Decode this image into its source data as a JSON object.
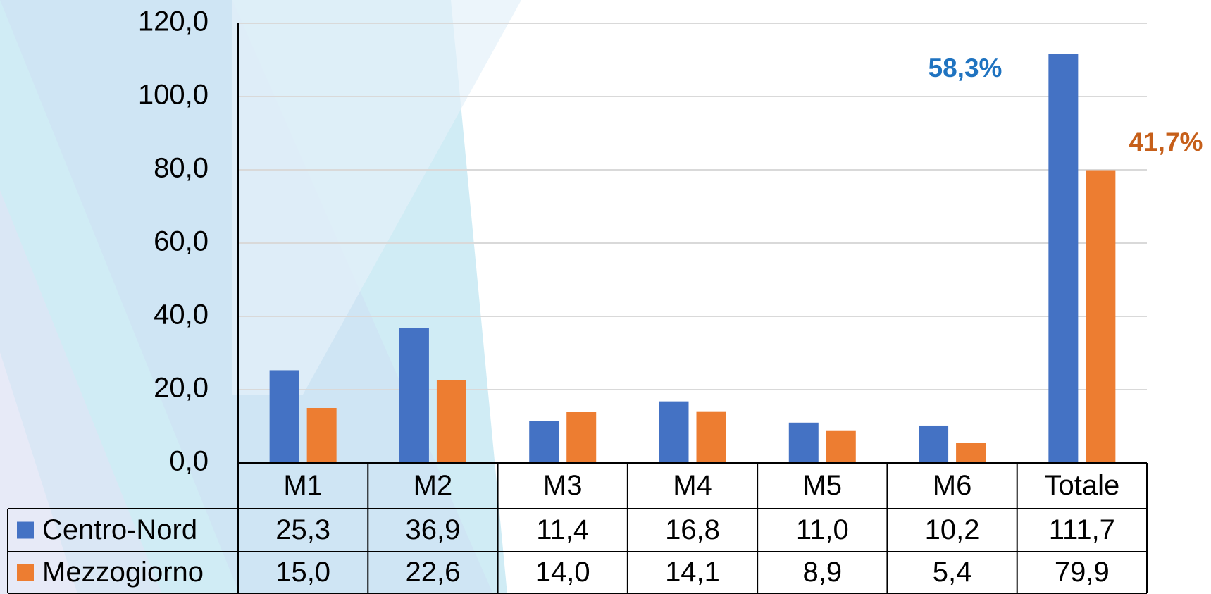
{
  "chart_data": {
    "type": "bar",
    "categories": [
      "M1",
      "M2",
      "M3",
      "M4",
      "M5",
      "M6",
      "Totale"
    ],
    "series": [
      {
        "name": "Centro-Nord",
        "color": "#4472c4",
        "values": [
          25.3,
          36.9,
          11.4,
          16.8,
          11.0,
          10.2,
          111.7
        ],
        "value_labels": [
          "25,3",
          "36,9",
          "11,4",
          "16,8",
          "11,0",
          "10,2",
          "111,7"
        ]
      },
      {
        "name": "Mezzogiorno",
        "color": "#ed7d31",
        "values": [
          15.0,
          22.6,
          14.0,
          14.1,
          8.9,
          5.4,
          79.9
        ],
        "value_labels": [
          "15,0",
          "22,6",
          "14,0",
          "14,1",
          "8,9",
          "5,4",
          "79,9"
        ]
      }
    ],
    "ylim": [
      0,
      120
    ],
    "yticks": [
      {
        "value": 0,
        "label": "0,0"
      },
      {
        "value": 20,
        "label": "20,0"
      },
      {
        "value": 40,
        "label": "40,0"
      },
      {
        "value": 60,
        "label": "60,0"
      },
      {
        "value": 80,
        "label": "80,0"
      },
      {
        "value": 100,
        "label": "100,0"
      },
      {
        "value": 120,
        "label": "120,0"
      }
    ],
    "grid": true,
    "annotations": [
      {
        "text": "58,3%",
        "color": "#1f73c0"
      },
      {
        "text": "41,7%",
        "color": "#c65f1a"
      }
    ]
  }
}
